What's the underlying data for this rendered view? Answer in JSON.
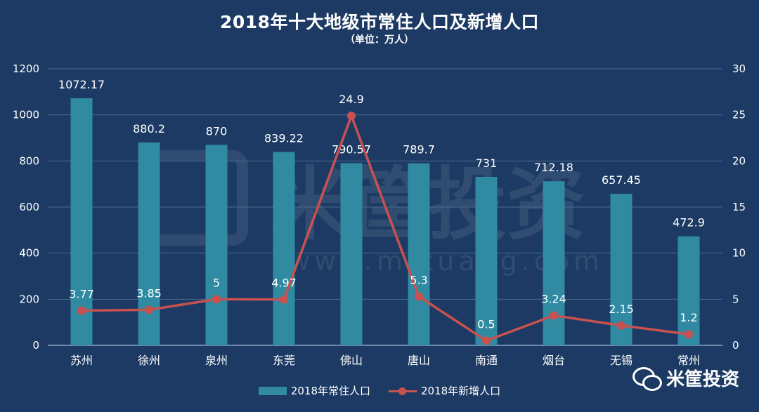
{
  "header": {
    "title": "2018年十大地级市常住人口及新增人口",
    "subtitle": "（单位：万人）"
  },
  "watermark": {
    "brand": "米筐投资",
    "url": "www.mikuang.com"
  },
  "brand": {
    "name": "米筐投资",
    "icon": "wechat-icon"
  },
  "colors": {
    "background": "#1c3a63",
    "bar": "#2f8aa2",
    "line": "#c9514f",
    "text": "#ffffff",
    "grid": "#4b6a91"
  },
  "chart_data": {
    "type": "bar",
    "title": "2018年十大地级市常住人口及新增人口",
    "subtitle": "（单位：万人）",
    "categories": [
      "苏州",
      "徐州",
      "泉州",
      "东莞",
      "佛山",
      "唐山",
      "南通",
      "烟台",
      "无锡",
      "常州"
    ],
    "series": [
      {
        "name": "2018年常住人口",
        "type": "bar",
        "axis": "left",
        "values": [
          1072.17,
          880.2,
          870,
          839.22,
          790.57,
          789.7,
          731,
          712.18,
          657.45,
          472.9
        ],
        "labels": [
          "1072.17",
          "880.2",
          "870",
          "839.22",
          "790.57",
          "789.7",
          "731",
          "712.18",
          "657.45",
          "472.9"
        ]
      },
      {
        "name": "2018年新增人口",
        "type": "line",
        "axis": "right",
        "values": [
          3.77,
          3.85,
          5,
          4.97,
          24.9,
          5.3,
          0.5,
          3.24,
          2.15,
          1.2
        ],
        "labels": [
          "3.77",
          "3.85",
          "5",
          "4.97",
          "24.9",
          "5.3",
          "0.5",
          "3.24",
          "2.15",
          "1.2"
        ]
      }
    ],
    "y_left": {
      "ylim": [
        0,
        1200
      ],
      "ticks": [
        "0",
        "200",
        "400",
        "600",
        "800",
        "1000",
        "1200"
      ]
    },
    "y_right": {
      "ylim": [
        0,
        30
      ],
      "ticks": [
        "0",
        "5",
        "10",
        "15",
        "20",
        "25",
        "30"
      ]
    },
    "grid": true,
    "legend_position": "bottom"
  }
}
